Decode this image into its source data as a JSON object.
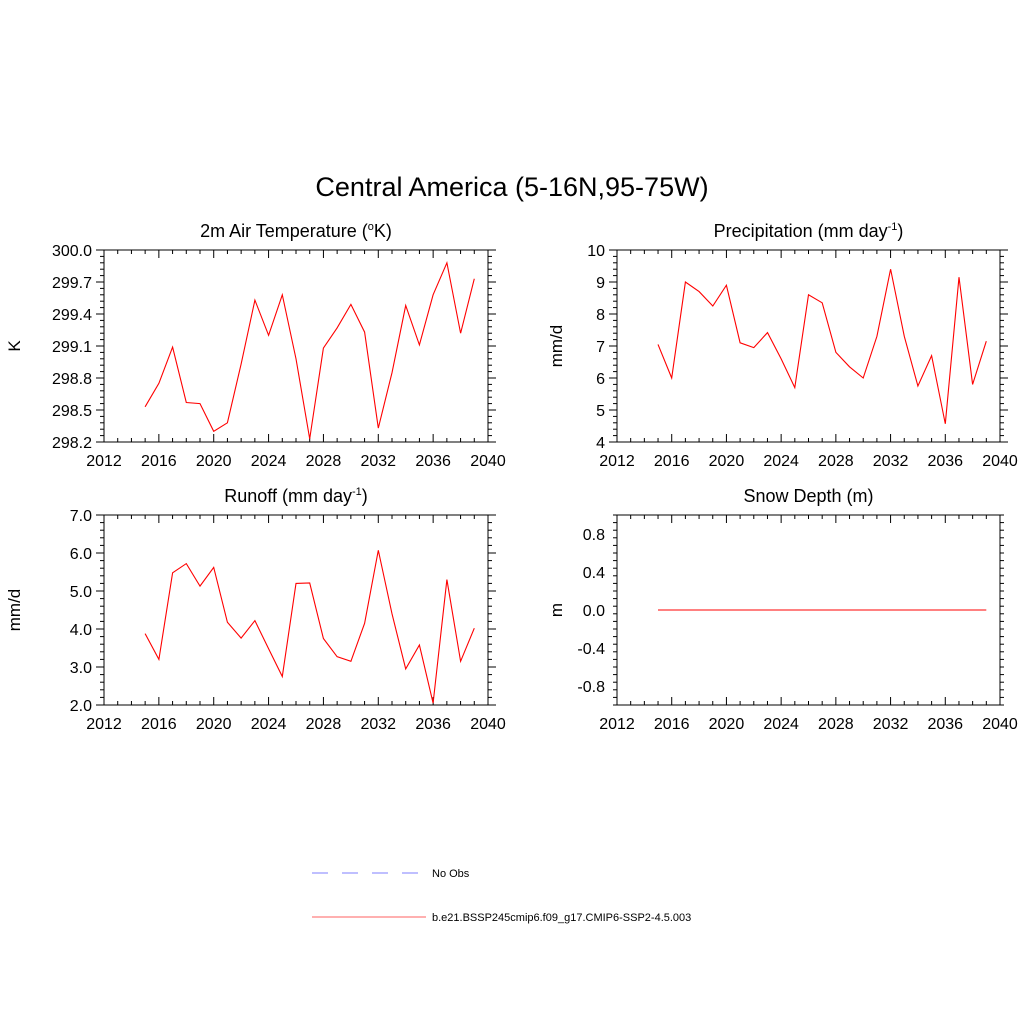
{
  "figure": {
    "title": "Central America (5-16N,95-75W)"
  },
  "legend": {
    "entries": [
      {
        "label": "No Obs",
        "color": "#9999ff",
        "style": "dashed"
      },
      {
        "label": "b.e21.BSSP245cmip6.f09_g17.CMIP6-SSP2-4.5.003",
        "color": "#ff8080",
        "style": "solid"
      }
    ]
  },
  "colors": {
    "series": "#ff0000",
    "axis": "#000000"
  },
  "chart_data": [
    {
      "type": "line",
      "title": "2m Air Temperature (",
      "title_sup_before": "o",
      "title_after": "K)",
      "ylabel": "K",
      "xlim": [
        2012,
        2040
      ],
      "xticks": [
        2012,
        2016,
        2020,
        2024,
        2028,
        2032,
        2036,
        2040
      ],
      "ylim": [
        298.2,
        300.0
      ],
      "yticks": [
        "300.0",
        "299.7",
        "299.4",
        "299.1",
        "298.8",
        "298.5",
        "298.2"
      ],
      "series": [
        {
          "x": [
            2015,
            2016,
            2017,
            2018,
            2019,
            2020,
            2021,
            2022,
            2023,
            2024,
            2025,
            2026,
            2027,
            2028,
            2029,
            2030,
            2031,
            2032,
            2033,
            2034,
            2035,
            2036,
            2037,
            2038,
            2039
          ],
          "values": [
            298.53,
            298.75,
            299.09,
            298.57,
            298.56,
            298.3,
            298.38,
            298.93,
            299.53,
            299.2,
            299.58,
            298.98,
            298.23,
            299.08,
            299.27,
            299.49,
            299.23,
            298.33,
            298.85,
            299.48,
            299.11,
            299.58,
            299.88,
            299.22,
            299.73
          ]
        }
      ]
    },
    {
      "type": "line",
      "title": "Precipitation (mm day",
      "title_sup": "-1",
      "title_after": ")",
      "ylabel": "mm/d",
      "xlim": [
        2012,
        2040
      ],
      "xticks": [
        2012,
        2016,
        2020,
        2024,
        2028,
        2032,
        2036,
        2040
      ],
      "ylim": [
        4,
        10
      ],
      "yticks": [
        "10",
        "9",
        "8",
        "7",
        "6",
        "5",
        "4"
      ],
      "series": [
        {
          "x": [
            2015,
            2016,
            2017,
            2018,
            2019,
            2020,
            2021,
            2022,
            2023,
            2024,
            2025,
            2026,
            2027,
            2028,
            2029,
            2030,
            2031,
            2032,
            2033,
            2034,
            2035,
            2036,
            2037,
            2038,
            2039
          ],
          "values": [
            7.05,
            6.0,
            9.0,
            8.7,
            8.25,
            8.9,
            7.1,
            6.95,
            7.42,
            6.6,
            5.7,
            8.6,
            8.35,
            6.8,
            6.35,
            6.0,
            7.3,
            9.4,
            7.3,
            5.75,
            6.7,
            4.57,
            9.15,
            5.8,
            7.15
          ]
        }
      ]
    },
    {
      "type": "line",
      "title": "Runoff (mm day",
      "title_sup": "-1",
      "title_after": ")",
      "ylabel": "mm/d",
      "xlim": [
        2012,
        2040
      ],
      "xticks": [
        2012,
        2016,
        2020,
        2024,
        2028,
        2032,
        2036,
        2040
      ],
      "ylim": [
        2.0,
        7.0
      ],
      "yticks": [
        "7.0",
        "6.0",
        "5.0",
        "4.0",
        "3.0",
        "2.0"
      ],
      "series": [
        {
          "x": [
            2015,
            2016,
            2017,
            2018,
            2019,
            2020,
            2021,
            2022,
            2023,
            2024,
            2025,
            2026,
            2027,
            2028,
            2029,
            2030,
            2031,
            2032,
            2033,
            2034,
            2035,
            2036,
            2037,
            2038,
            2039
          ],
          "values": [
            3.88,
            3.2,
            5.48,
            5.72,
            5.13,
            5.62,
            4.18,
            3.76,
            4.22,
            3.48,
            2.75,
            5.2,
            5.21,
            3.75,
            3.27,
            3.15,
            4.15,
            6.07,
            4.4,
            2.95,
            3.58,
            2.05,
            5.3,
            3.15,
            4.02
          ]
        }
      ]
    },
    {
      "type": "line",
      "title": "Snow Depth (m)",
      "ylabel": "m",
      "xlim": [
        2012,
        2040
      ],
      "xticks": [
        2012,
        2016,
        2020,
        2024,
        2028,
        2032,
        2036,
        2040
      ],
      "ylim": [
        -1.0,
        1.0
      ],
      "yticks": [
        "0.8",
        "0.4",
        "0.0",
        "-0.4",
        "-0.8"
      ],
      "series": [
        {
          "x": [
            2015,
            2016,
            2017,
            2018,
            2019,
            2020,
            2021,
            2022,
            2023,
            2024,
            2025,
            2026,
            2027,
            2028,
            2029,
            2030,
            2031,
            2032,
            2033,
            2034,
            2035,
            2036,
            2037,
            2038,
            2039
          ],
          "values": [
            0,
            0,
            0,
            0,
            0,
            0,
            0,
            0,
            0,
            0,
            0,
            0,
            0,
            0,
            0,
            0,
            0,
            0,
            0,
            0,
            0,
            0,
            0,
            0,
            0
          ]
        }
      ]
    }
  ]
}
